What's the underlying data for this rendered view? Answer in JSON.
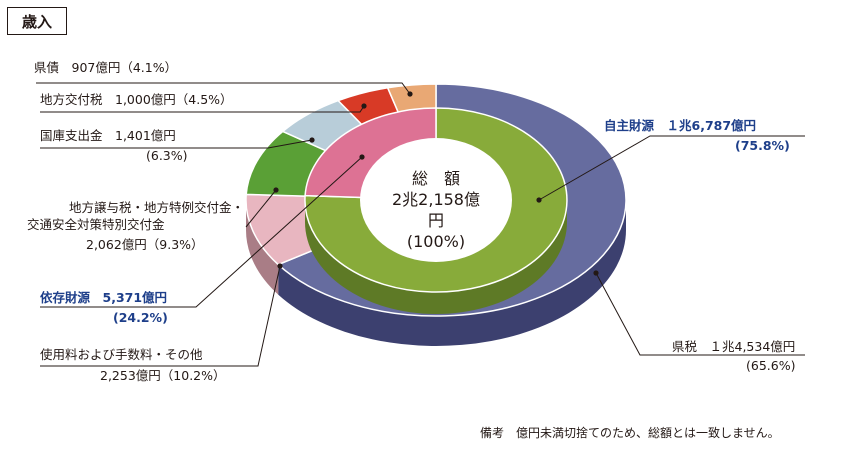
{
  "title": "歳入",
  "center": {
    "line1": "総　額",
    "line2": "2兆2,158億円",
    "line3": "(100%)"
  },
  "note": "備考　億円未満切捨てのため、総額とは一致しません。",
  "colors": {
    "prefectural_tax": "#666c9f",
    "prefectural_tax_side": "#3c406f",
    "inner_own": "#88ab3a",
    "inner_own_side": "#5e7a26",
    "inner_dep": "#dd7294",
    "fees": "#e8b6c0",
    "fees_side": "#a97d86",
    "transfer": "#5aa036",
    "treasury": "#b8cdd9",
    "grant": "#d83a26",
    "bond": "#e9a874"
  },
  "labels": {
    "bond": "県債　907億円（4.1%）",
    "grant": "地方交付税　1,000億円（4.5%）",
    "treasury1": "国庫支出金　1,401億円",
    "treasury2": "(6.3%)",
    "transfer1": "地方譲与税・地方特例交付金・",
    "transfer2": "交通安全対策特別交付金",
    "transfer3": "2,062億円（9.3%）",
    "dep1": "依存財源　5,371億円",
    "dep2": "(24.2%)",
    "fees1": "使用料および手数料・その他",
    "fees2": "2,253億円（10.2%）",
    "own1": "自主財源　１兆6,787億円",
    "own2": "(75.8%)",
    "tax1": "県税　１兆4,534億円",
    "tax2": "(65.6%)"
  },
  "chart_data": {
    "type": "pie",
    "title": "歳入",
    "total": "2兆2,158億円",
    "unit": "億円",
    "outer": [
      {
        "name": "県税",
        "value": 14534,
        "percent": 65.6
      },
      {
        "name": "使用料および手数料・その他",
        "value": 2253,
        "percent": 10.2
      },
      {
        "name": "地方譲与税・地方特例交付金・交通安全対策特別交付金",
        "value": 2062,
        "percent": 9.3
      },
      {
        "name": "国庫支出金",
        "value": 1401,
        "percent": 6.3
      },
      {
        "name": "地方交付税",
        "value": 1000,
        "percent": 4.5
      },
      {
        "name": "県債",
        "value": 907,
        "percent": 4.1
      }
    ],
    "inner": [
      {
        "name": "自主財源",
        "value": 16787,
        "percent": 75.8
      },
      {
        "name": "依存財源",
        "value": 5371,
        "percent": 24.2
      }
    ]
  }
}
